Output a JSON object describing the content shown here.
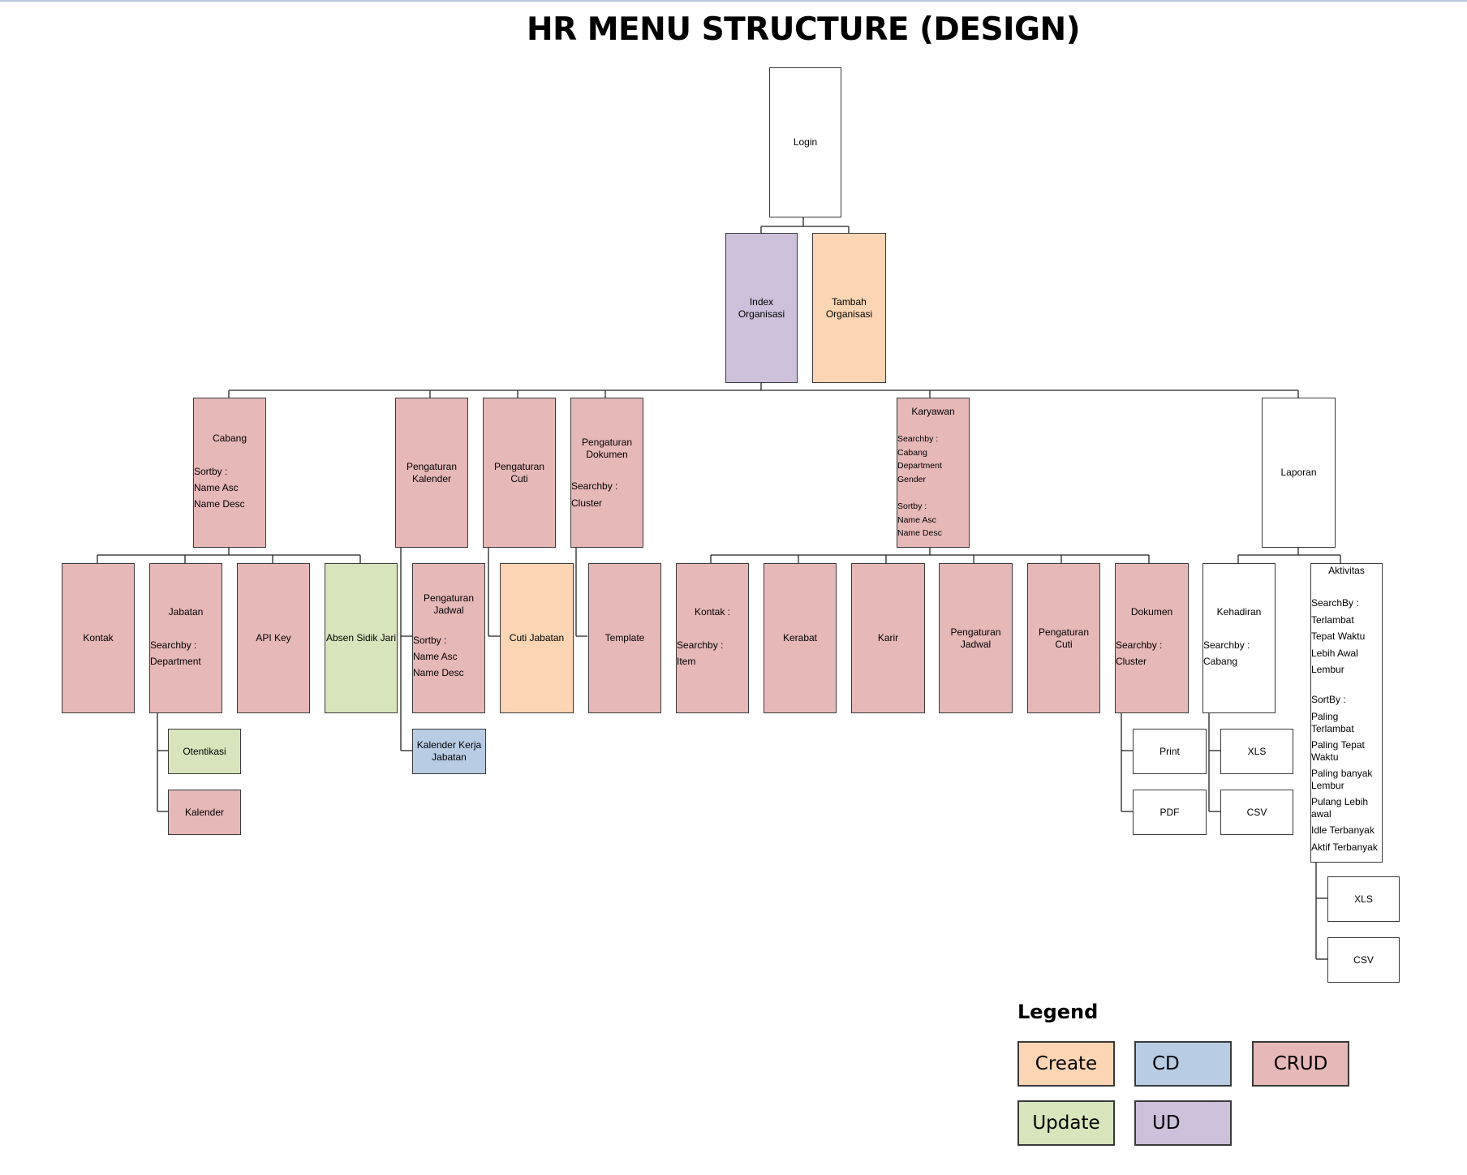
{
  "title": "HR MENU STRUCTURE (DESIGN)",
  "colors": {
    "create": "#fcd5b4",
    "cd": "#b8cce4",
    "crud": "#e6b8b7",
    "update": "#d7e4bc",
    "ud": "#ccc0da",
    "none": "#ffffff"
  },
  "nodes": {
    "login": {
      "label": "Login"
    },
    "index_organisasi": {
      "label1": "Index",
      "label2": "Organisasi"
    },
    "tambah_organisasi": {
      "label1": "Tambah",
      "label2": "Organisasi"
    },
    "cabang": {
      "label": "Cabang",
      "sort_label": "Sortby :",
      "sort_1": "Name Asc",
      "sort_2": "Name Desc"
    },
    "pengaturan_kalender": {
      "label1": "Pengaturan",
      "label2": "Kalender"
    },
    "pengaturan_cuti": {
      "label1": "Pengaturan",
      "label2": "Cuti"
    },
    "pengaturan_dokumen": {
      "label1": "Pengaturan",
      "label2": "Dokumen",
      "search_label": "Searchby :",
      "search_1": "Cluster"
    },
    "karyawan": {
      "label": "Karyawan",
      "search_label": "Searchby :",
      "search_1": "Cabang",
      "search_2": "Department",
      "search_3": "Gender",
      "sort_label": "Sortby :",
      "sort_1": "Name Asc",
      "sort_2": "Name Desc"
    },
    "laporan": {
      "label": "Laporan"
    },
    "kontak_cabang": {
      "label": "Kontak"
    },
    "jabatan": {
      "label": "Jabatan",
      "search_label": "Searchby :",
      "search_1": "Department"
    },
    "api_key": {
      "label": "API Key"
    },
    "absen_sidik_jari": {
      "label": "Absen Sidik Jari"
    },
    "pengaturan_jadwal_kal": {
      "label1": "Pengaturan",
      "label2": "Jadwal",
      "sort_label": "Sortby :",
      "sort_1": "Name Asc",
      "sort_2": "Name Desc"
    },
    "cuti_jabatan": {
      "label": "Cuti Jabatan"
    },
    "template": {
      "label": "Template"
    },
    "kontak_kary": {
      "label": "Kontak :",
      "search_label": "Searchby :",
      "search_1": "Item"
    },
    "kerabat": {
      "label": "Kerabat"
    },
    "karir": {
      "label": "Karir"
    },
    "pengaturan_jadwal_kary": {
      "label1": "Pengaturan",
      "label2": "Jadwal"
    },
    "pengaturan_cuti_kary": {
      "label1": "Pengaturan",
      "label2": "Cuti"
    },
    "dokumen": {
      "label": "Dokumen",
      "search_label": "Searchby :",
      "search_1": "Cluster"
    },
    "kehadiran": {
      "label": "Kehadiran",
      "search_label": "Searchby :",
      "search_1": "Cabang"
    },
    "aktivitas": {
      "label": "Aktivitas",
      "search_label": "SearchBy :",
      "search_1": "Terlambat",
      "search_2": "Tepat Waktu",
      "search_3": "Lebih Awal",
      "search_4": "Lembur",
      "sort_label": "SortBy :",
      "sort_1a": "Paling",
      "sort_1b": "Terlambat",
      "sort_2a": "Paling Tepat",
      "sort_2b": "Waktu",
      "sort_3a": "Paling banyak",
      "sort_3b": "Lembur",
      "sort_4a": "Pulang Lebih",
      "sort_4b": "awal",
      "sort_5": "Idle Terbanyak",
      "sort_6": "Aktif Terbanyak"
    },
    "otentikasi": {
      "label": "Otentikasi"
    },
    "kalender": {
      "label": "Kalender"
    },
    "kalender_kerja_jabatan": {
      "label1": "Kalender Kerja",
      "label2": "Jabatan"
    },
    "print": {
      "label": "Print"
    },
    "pdf": {
      "label": "PDF"
    },
    "kehadiran_xls": {
      "label": "XLS"
    },
    "kehadiran_csv": {
      "label": "CSV"
    },
    "aktivitas_xls": {
      "label": "XLS"
    },
    "aktivitas_csv": {
      "label": "CSV"
    }
  },
  "legend": {
    "title": "Legend",
    "create": "Create",
    "cd": "CD",
    "crud": "CRUD",
    "update": "Update",
    "ud": "UD"
  }
}
